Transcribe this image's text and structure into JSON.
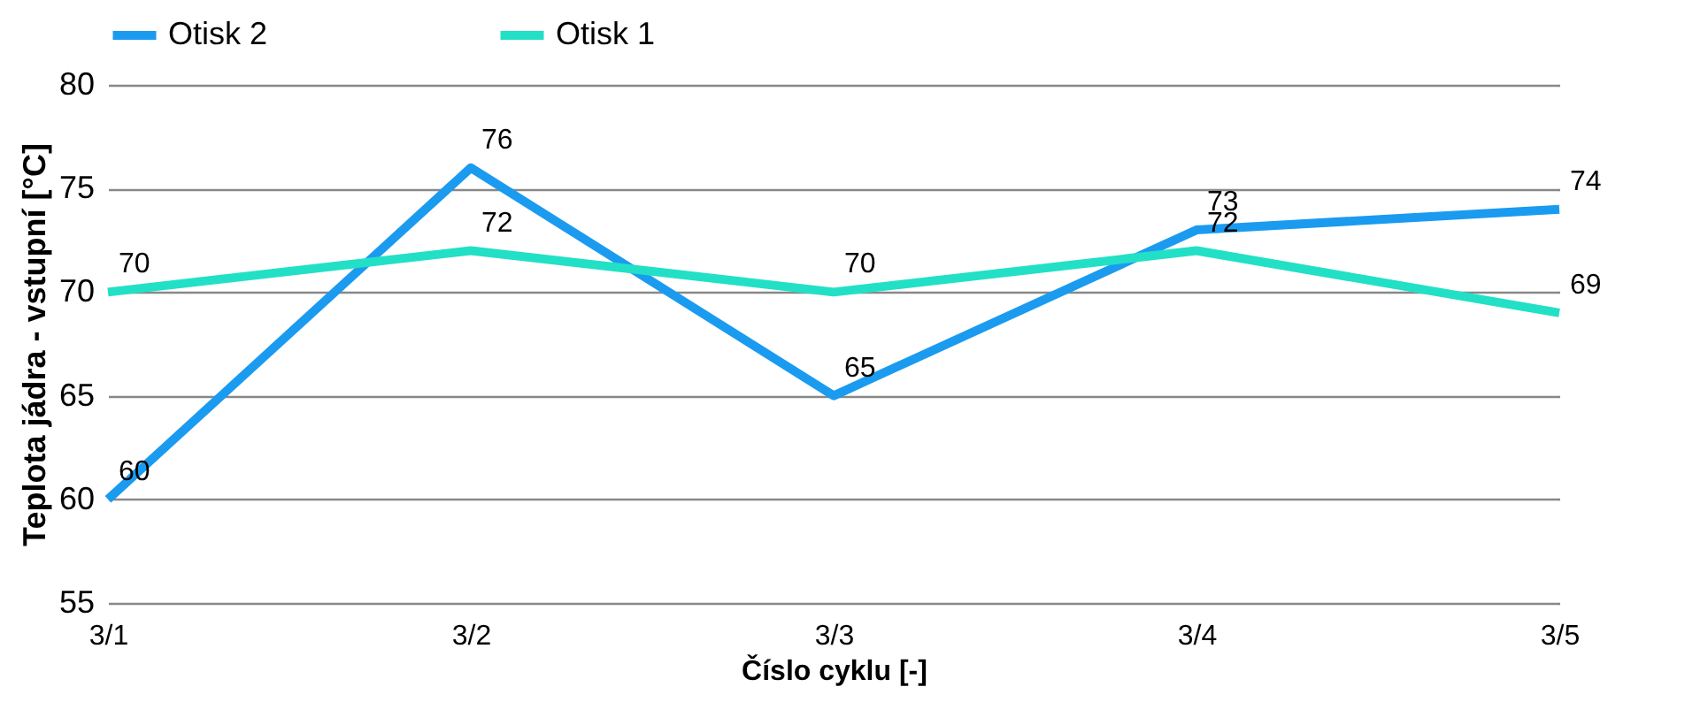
{
  "chart_data": {
    "type": "line",
    "xlabel": "Číslo cyklu [-]",
    "ylabel": "Teplota jádra - vstupní [°C]",
    "categories": [
      "3/1",
      "3/2",
      "3/3",
      "3/4",
      "3/5"
    ],
    "series": [
      {
        "name": "Otisk 2",
        "color": "#1a9bf0",
        "values": [
          60,
          76,
          65,
          73,
          74
        ]
      },
      {
        "name": "Otisk 1",
        "color": "#22e0c6",
        "values": [
          70,
          72,
          70,
          72,
          69
        ]
      }
    ],
    "ylim": [
      55,
      80
    ],
    "yticks": [
      55,
      60,
      65,
      70,
      75,
      80
    ],
    "grid": "y",
    "legend": "top",
    "data_labels": true,
    "marker": "none",
    "line_style": "solid"
  }
}
